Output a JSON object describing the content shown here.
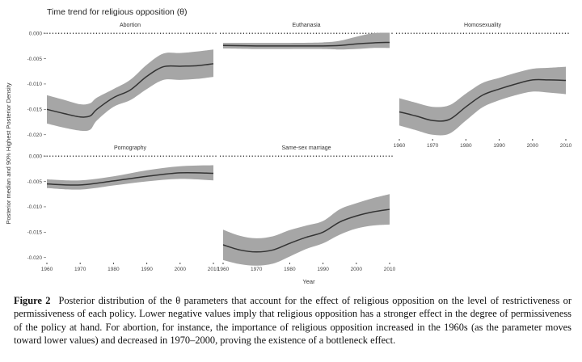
{
  "title": "Time trend for religious opposition (θ)",
  "ylabel": "Posterior median and 90% Highest Posterior Density",
  "xlabel": "Year",
  "caption": {
    "label": "Figure 2",
    "text": "Posterior distribution of the θ parameters that account for the effect of religious opposition on the level of restrictiveness or permissiveness of each policy. Lower negative values imply that religious opposition has a stronger effect in the degree of permissiveness of the policy at hand. For abortion, for instance, the importance of religious opposition increased in the 1960s (as the parameter moves toward lower values) and decreased in 1970–2000, proving the existence of a bottleneck effect."
  },
  "colors": {
    "ribbon": "#a6a6a6",
    "line": "#333333",
    "zero": "#000000"
  },
  "chart_data": {
    "type": "line",
    "x_ticks": [
      1960,
      1970,
      1980,
      1990,
      2000,
      2010
    ],
    "y_ticks": [
      "0.000",
      "-0.005",
      "-0.010",
      "-0.015",
      "-0.020"
    ],
    "xlim": [
      1960,
      2010
    ],
    "ylim": [
      -0.021,
      0.0005
    ],
    "reference_line": 0,
    "panels": [
      {
        "name": "Abortion",
        "x": [
          1960,
          1965,
          1970,
          1973,
          1975,
          1980,
          1985,
          1990,
          1995,
          2000,
          2005,
          2010
        ],
        "median": [
          -0.015,
          -0.0158,
          -0.0165,
          -0.0163,
          -0.015,
          -0.0127,
          -0.0112,
          -0.0085,
          -0.0066,
          -0.0065,
          -0.0064,
          -0.006
        ],
        "lower": [
          -0.0178,
          -0.0186,
          -0.0192,
          -0.019,
          -0.0172,
          -0.0145,
          -0.0132,
          -0.011,
          -0.0092,
          -0.0092,
          -0.009,
          -0.0086
        ],
        "upper": [
          -0.0122,
          -0.0131,
          -0.014,
          -0.0138,
          -0.0127,
          -0.011,
          -0.0092,
          -0.0062,
          -0.004,
          -0.0039,
          -0.0036,
          -0.0032
        ]
      },
      {
        "name": "Euthanasia",
        "x": [
          1960,
          1970,
          1980,
          1990,
          1995,
          2000,
          2005,
          2010
        ],
        "median": [
          -0.0024,
          -0.0025,
          -0.0025,
          -0.0025,
          -0.0024,
          -0.0021,
          -0.0019,
          -0.0018
        ],
        "lower": [
          -0.003,
          -0.0031,
          -0.0031,
          -0.0031,
          -0.0032,
          -0.0031,
          -0.0029,
          -0.0029
        ],
        "upper": [
          -0.0019,
          -0.0019,
          -0.0019,
          -0.0018,
          -0.0015,
          -0.0007,
          0.0,
          0.0001
        ]
      },
      {
        "name": "Homosexuality",
        "x": [
          1960,
          1965,
          1970,
          1975,
          1980,
          1985,
          1990,
          1995,
          2000,
          2005,
          2010
        ],
        "median": [
          -0.0155,
          -0.0163,
          -0.0172,
          -0.017,
          -0.0145,
          -0.0122,
          -0.011,
          -0.01,
          -0.0092,
          -0.0092,
          -0.0093
        ],
        "lower": [
          -0.0182,
          -0.0191,
          -0.02,
          -0.0198,
          -0.0172,
          -0.0146,
          -0.0132,
          -0.0122,
          -0.0115,
          -0.0117,
          -0.012
        ],
        "upper": [
          -0.0128,
          -0.0137,
          -0.0145,
          -0.0142,
          -0.0119,
          -0.0098,
          -0.0088,
          -0.0078,
          -0.007,
          -0.0068,
          -0.0066
        ]
      },
      {
        "name": "Pornography",
        "x": [
          1960,
          1970,
          1980,
          1990,
          2000,
          2010
        ],
        "median": [
          -0.0055,
          -0.0057,
          -0.0049,
          -0.004,
          -0.0033,
          -0.0034
        ],
        "lower": [
          -0.0063,
          -0.0066,
          -0.0058,
          -0.005,
          -0.0045,
          -0.0048
        ],
        "upper": [
          -0.0046,
          -0.0048,
          -0.004,
          -0.0028,
          -0.002,
          -0.0018
        ]
      },
      {
        "name": "Same-sex marriage",
        "x": [
          1960,
          1965,
          1970,
          1975,
          1980,
          1985,
          1990,
          1995,
          2000,
          2005,
          2010
        ],
        "median": [
          -0.0175,
          -0.0185,
          -0.0189,
          -0.0185,
          -0.0172,
          -0.016,
          -0.015,
          -0.013,
          -0.0118,
          -0.011,
          -0.0105
        ],
        "lower": [
          -0.0205,
          -0.0213,
          -0.0216,
          -0.0212,
          -0.0198,
          -0.0183,
          -0.0172,
          -0.0155,
          -0.0143,
          -0.0137,
          -0.0135
        ],
        "upper": [
          -0.0145,
          -0.0157,
          -0.0162,
          -0.0158,
          -0.0146,
          -0.0137,
          -0.0128,
          -0.0105,
          -0.0093,
          -0.0083,
          -0.0075
        ]
      }
    ]
  }
}
